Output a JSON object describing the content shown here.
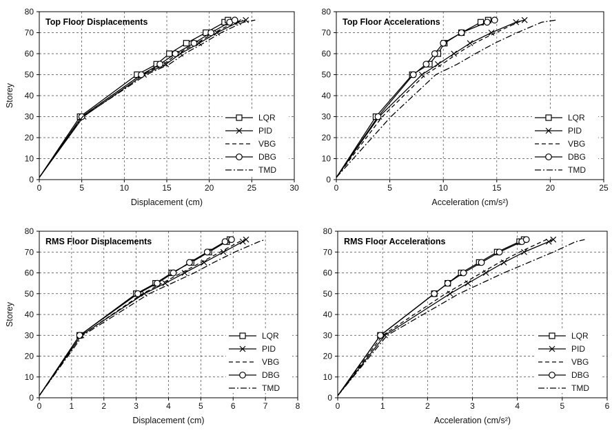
{
  "chart_data": [
    {
      "type": "line",
      "title": "Top Floor Displacements",
      "xlabel": "Displacement (cm)",
      "ylabel": "Storey",
      "xlim": [
        0,
        30
      ],
      "ylim": [
        0,
        80
      ],
      "xticks": [
        0,
        5,
        10,
        15,
        20,
        25,
        30
      ],
      "yticks": [
        0,
        10,
        20,
        30,
        40,
        50,
        60,
        70,
        80
      ],
      "grid": true,
      "legend": "bottom-right",
      "series": [
        {
          "name": "LQR",
          "marker": "square",
          "dash": "solid",
          "x": [
            0,
            4.8,
            11.5,
            13.8,
            15.3,
            17.3,
            19.6,
            21.8,
            22.2
          ],
          "y": [
            1,
            30,
            50,
            55,
            60,
            65,
            70,
            75,
            76
          ]
        },
        {
          "name": "PID",
          "marker": "x",
          "dash": "solid",
          "x": [
            0,
            5.2,
            12.3,
            14.9,
            16.6,
            18.8,
            20.9,
            23.4,
            24.3
          ],
          "y": [
            1,
            30,
            50,
            55,
            60,
            65,
            70,
            75,
            76
          ]
        },
        {
          "name": "VBG",
          "marker": "none",
          "dash": "dashed",
          "x": [
            0,
            5.0,
            12.0,
            14.6,
            16.3,
            18.5,
            20.6,
            23.0,
            23.9
          ],
          "y": [
            1,
            30,
            50,
            55,
            60,
            65,
            70,
            75,
            76
          ]
        },
        {
          "name": "DBG",
          "marker": "circle",
          "dash": "solid",
          "x": [
            0,
            5.0,
            12.0,
            14.2,
            16.0,
            18.2,
            20.2,
            22.4,
            23.0
          ],
          "y": [
            1,
            30,
            50,
            55,
            60,
            65,
            70,
            75,
            76
          ]
        },
        {
          "name": "TMD",
          "marker": "none",
          "dash": "dashdot",
          "x": [
            0,
            5.1,
            12.6,
            15.3,
            17.1,
            19.3,
            21.4,
            24.0,
            25.4
          ],
          "y": [
            1,
            30,
            50,
            55,
            60,
            65,
            70,
            75,
            76
          ]
        }
      ]
    },
    {
      "type": "line",
      "title": "Top Floor Accelerations",
      "xlabel": "Acceleration (cm/s²)",
      "ylabel": "",
      "xlim": [
        0,
        25
      ],
      "ylim": [
        0,
        80
      ],
      "xticks": [
        0,
        5,
        10,
        15,
        20,
        25
      ],
      "yticks": [
        0,
        10,
        20,
        30,
        40,
        50,
        60,
        70,
        80
      ],
      "grid": true,
      "legend": "bottom-right",
      "series": [
        {
          "name": "LQR",
          "marker": "square",
          "dash": "solid",
          "x": [
            0,
            3.7,
            7.1,
            8.7,
            9.5,
            10.1,
            11.7,
            13.5,
            14.2
          ],
          "y": [
            1,
            30,
            50,
            55,
            60,
            65,
            70,
            75,
            76
          ]
        },
        {
          "name": "PID",
          "marker": "x",
          "dash": "solid",
          "x": [
            0,
            4.0,
            8.0,
            9.5,
            11.0,
            12.5,
            14.5,
            16.8,
            17.6
          ],
          "y": [
            1,
            30,
            50,
            55,
            60,
            65,
            70,
            75,
            76
          ]
        },
        {
          "name": "VBG",
          "marker": "none",
          "dash": "dashed",
          "x": [
            0,
            4.3,
            8.3,
            9.9,
            11.3,
            12.9,
            14.9,
            17.0,
            17.6
          ],
          "y": [
            1,
            30,
            50,
            55,
            60,
            65,
            70,
            75,
            76
          ]
        },
        {
          "name": "DBG",
          "marker": "circle",
          "dash": "solid",
          "x": [
            0,
            3.9,
            7.2,
            8.4,
            9.2,
            10.0,
            11.7,
            14.1,
            14.8
          ],
          "y": [
            1,
            30,
            50,
            55,
            60,
            65,
            70,
            75,
            76
          ]
        },
        {
          "name": "TMD",
          "marker": "none",
          "dash": "dashdot",
          "x": [
            0,
            5.1,
            9.3,
            11.3,
            13.0,
            14.8,
            16.9,
            19.2,
            20.5
          ],
          "y": [
            1,
            30,
            50,
            55,
            60,
            65,
            70,
            75,
            76
          ]
        }
      ]
    },
    {
      "type": "line",
      "title": "RMS Floor Displacements",
      "xlabel": "Displacement (cm)",
      "ylabel": "Storey",
      "xlim": [
        0,
        8
      ],
      "ylim": [
        0,
        80
      ],
      "xticks": [
        0,
        1,
        2,
        3,
        4,
        5,
        6,
        7,
        8
      ],
      "yticks": [
        0,
        10,
        20,
        30,
        40,
        50,
        60,
        70,
        80
      ],
      "grid": true,
      "legend": "bottom-right",
      "series": [
        {
          "name": "LQR",
          "marker": "square",
          "dash": "solid",
          "x": [
            0,
            1.25,
            3.0,
            3.6,
            4.1,
            4.7,
            5.25,
            5.8,
            5.9
          ],
          "y": [
            1,
            30,
            50,
            55,
            60,
            65,
            70,
            75,
            76
          ]
        },
        {
          "name": "PID",
          "marker": "x",
          "dash": "solid",
          "x": [
            0,
            1.3,
            3.25,
            3.9,
            4.5,
            5.1,
            5.7,
            6.3,
            6.4
          ],
          "y": [
            1,
            30,
            50,
            55,
            60,
            65,
            70,
            75,
            76
          ]
        },
        {
          "name": "VBG",
          "marker": "none",
          "dash": "dashed",
          "x": [
            0,
            1.3,
            3.2,
            3.8,
            4.4,
            5.0,
            5.6,
            6.2,
            6.35
          ],
          "y": [
            1,
            30,
            50,
            55,
            60,
            65,
            70,
            75,
            76
          ]
        },
        {
          "name": "DBG",
          "marker": "circle",
          "dash": "solid",
          "x": [
            0,
            1.25,
            3.05,
            3.65,
            4.15,
            4.65,
            5.2,
            5.75,
            5.95
          ],
          "y": [
            1,
            30,
            50,
            55,
            60,
            65,
            70,
            75,
            76
          ]
        },
        {
          "name": "TMD",
          "marker": "none",
          "dash": "dashdot",
          "x": [
            0,
            1.35,
            3.4,
            4.1,
            4.8,
            5.4,
            6.05,
            6.8,
            7.0
          ],
          "y": [
            1,
            30,
            50,
            55,
            60,
            65,
            70,
            75,
            76
          ]
        }
      ]
    },
    {
      "type": "line",
      "title": "RMS Floor Accelerations",
      "xlabel": "Acceleration (cm/s²)",
      "ylabel": "",
      "xlim": [
        0,
        6
      ],
      "ylim": [
        0,
        80
      ],
      "xticks": [
        0,
        1,
        2,
        3,
        4,
        5,
        6
      ],
      "yticks": [
        0,
        10,
        20,
        30,
        40,
        50,
        60,
        70,
        80
      ],
      "grid": true,
      "legend": "bottom-right",
      "series": [
        {
          "name": "LQR",
          "marker": "square",
          "dash": "solid",
          "x": [
            0,
            0.95,
            2.15,
            2.45,
            2.75,
            3.15,
            3.55,
            4.05,
            4.15
          ],
          "y": [
            1,
            30,
            50,
            55,
            60,
            65,
            70,
            75,
            76
          ]
        },
        {
          "name": "PID",
          "marker": "x",
          "dash": "solid",
          "x": [
            0,
            1.05,
            2.5,
            2.9,
            3.3,
            3.7,
            4.15,
            4.7,
            4.8
          ],
          "y": [
            1,
            30,
            50,
            55,
            60,
            65,
            70,
            75,
            76
          ]
        },
        {
          "name": "VBG",
          "marker": "none",
          "dash": "dashed",
          "x": [
            0,
            1.0,
            2.4,
            2.8,
            3.2,
            3.6,
            4.05,
            4.55,
            4.65
          ],
          "y": [
            1,
            30,
            50,
            55,
            60,
            65,
            70,
            75,
            76
          ]
        },
        {
          "name": "DBG",
          "marker": "circle",
          "dash": "solid",
          "x": [
            0,
            0.95,
            2.15,
            2.45,
            2.8,
            3.2,
            3.6,
            4.1,
            4.2
          ],
          "y": [
            1,
            30,
            50,
            55,
            60,
            65,
            70,
            75,
            76
          ]
        },
        {
          "name": "TMD",
          "marker": "none",
          "dash": "dashdot",
          "x": [
            0,
            1.1,
            2.7,
            3.2,
            3.7,
            4.25,
            4.8,
            5.3,
            5.5
          ],
          "y": [
            1,
            30,
            50,
            55,
            60,
            65,
            70,
            75,
            76
          ]
        }
      ]
    }
  ]
}
